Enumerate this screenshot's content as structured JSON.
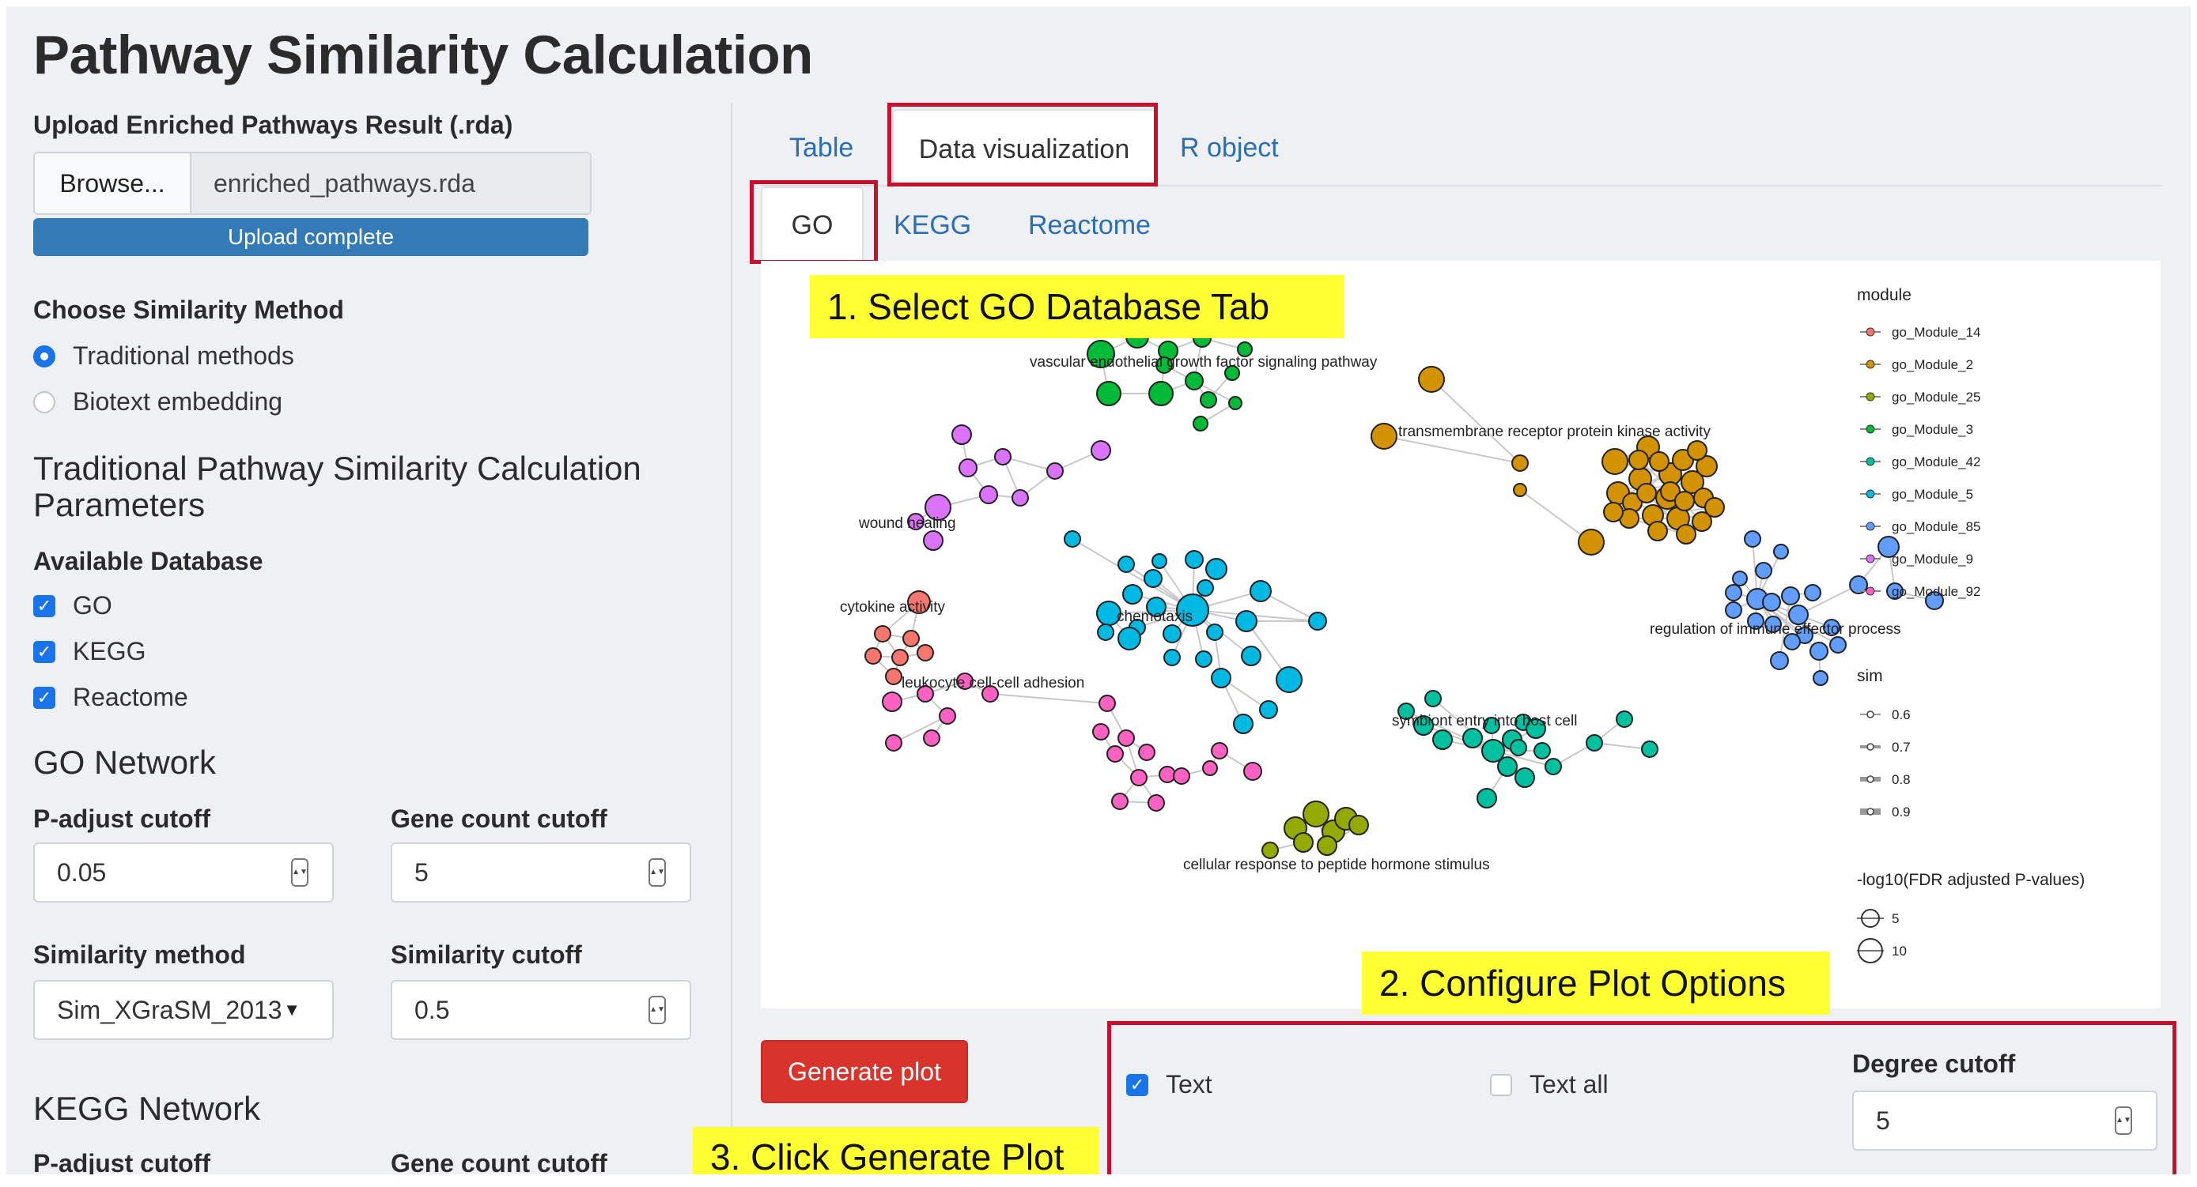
{
  "title": "Pathway Similarity Calculation",
  "upload": {
    "label": "Upload Enriched Pathways Result (.rda)",
    "browse": "Browse...",
    "filename": "enriched_pathways.rda",
    "status": "Upload complete"
  },
  "similarity_method": {
    "label": "Choose Similarity Method",
    "options": [
      "Traditional methods",
      "Biotext embedding"
    ],
    "selected": "Traditional methods"
  },
  "params": {
    "heading": "Traditional Pathway Similarity Calculation Parameters",
    "db_label": "Available Database",
    "databases": [
      {
        "label": "GO",
        "checked": true
      },
      {
        "label": "KEGG",
        "checked": true
      },
      {
        "label": "Reactome",
        "checked": true
      }
    ]
  },
  "go_network": {
    "heading": "GO Network",
    "padj_label": "P-adjust cutoff",
    "padj_value": "0.05",
    "gene_label": "Gene count cutoff",
    "gene_value": "5",
    "sim_method_label": "Similarity method",
    "sim_method_value": "Sim_XGraSM_2013",
    "sim_cutoff_label": "Similarity cutoff",
    "sim_cutoff_value": "0.5"
  },
  "kegg_network": {
    "heading": "KEGG Network",
    "padj_label": "P-adjust cutoff",
    "gene_label": "Gene count cutoff"
  },
  "tabs": {
    "main": [
      "Table",
      "Data visualization",
      "R object"
    ],
    "main_active": "Data visualization",
    "sub": [
      "GO",
      "KEGG",
      "Reactome"
    ],
    "sub_active": "GO"
  },
  "annotations": {
    "step1": "1. Select GO Database Tab",
    "step2": "2. Configure Plot Options",
    "step3": "3. Click Generate Plot"
  },
  "plot": {
    "legend_module_title": "module",
    "modules": [
      {
        "name": "go_Module_14",
        "color": "#f8766d"
      },
      {
        "name": "go_Module_2",
        "color": "#d39200"
      },
      {
        "name": "go_Module_25",
        "color": "#93aa00"
      },
      {
        "name": "go_Module_3",
        "color": "#00ba38"
      },
      {
        "name": "go_Module_42",
        "color": "#00c19f"
      },
      {
        "name": "go_Module_5",
        "color": "#00b9e3"
      },
      {
        "name": "go_Module_85",
        "color": "#619cff"
      },
      {
        "name": "go_Module_9",
        "color": "#db72fb"
      },
      {
        "name": "go_Module_92",
        "color": "#ff61c3"
      }
    ],
    "legend_sim_title": "sim",
    "sim_values": [
      "0.6",
      "0.7",
      "0.8",
      "0.9"
    ],
    "legend_p_title": "-log10(FDR adjusted P-values)",
    "p_values": [
      "5",
      "10"
    ],
    "cluster_labels": {
      "vegf": "vascular endothelial growth factor signaling pathway",
      "tmrpk": "transmembrane receptor protein kinase activity",
      "wound": "wound healing",
      "cytokine": "cytokine activity",
      "chemotaxis": "chemotaxis",
      "immune": "regulation of immune effector process",
      "leukocyte": "leukocyte cell-cell adhesion",
      "symbiont": "symbiont entry into host cell",
      "peptide": "cellular response to peptide hormone stimulus"
    }
  },
  "generate_button": "Generate plot",
  "options": {
    "text_label": "Text",
    "text_checked": true,
    "text_all_label": "Text all",
    "text_all_checked": false,
    "degree_label": "Degree cutoff",
    "degree_value": "5"
  }
}
